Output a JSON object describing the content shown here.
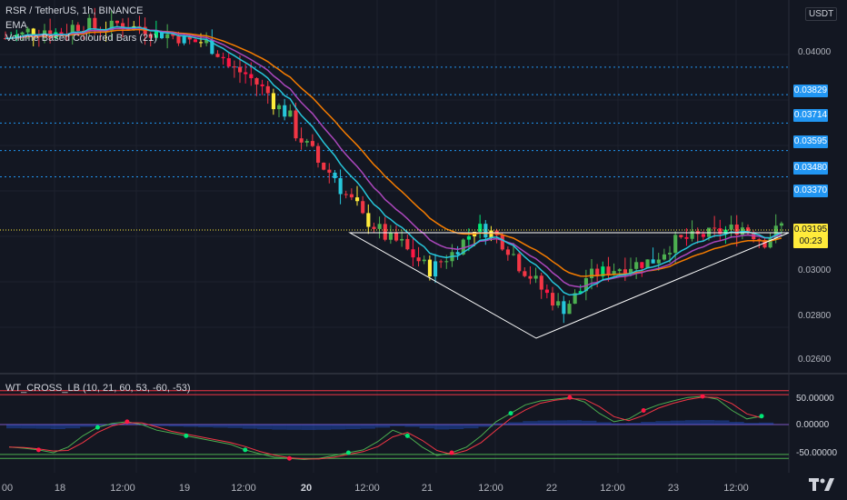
{
  "chart_data": {
    "type": "candlestick",
    "title": "RSR / TetherUS, 1h, BINANCE",
    "indicators": [
      "EMA",
      "Volume Based Coloured Bars (21)"
    ],
    "currency": "USDT",
    "y_axis_ticks": [
      "0.04000",
      "0.03000",
      "0.02800",
      "0.02600"
    ],
    "price_levels": [
      0.03829,
      0.03714,
      0.03595,
      0.0348,
      0.0337
    ],
    "last_price": "0.03195",
    "countdown": "00:23",
    "x_axis_ticks": [
      {
        "label": "00",
        "bold": false
      },
      {
        "label": "18",
        "bold": false
      },
      {
        "label": "12:00",
        "bold": false
      },
      {
        "label": "19",
        "bold": false
      },
      {
        "label": "12:00",
        "bold": false
      },
      {
        "label": "20",
        "bold": true
      },
      {
        "label": "12:00",
        "bold": false
      },
      {
        "label": "21",
        "bold": false
      },
      {
        "label": "12:00",
        "bold": false
      },
      {
        "label": "22",
        "bold": false
      },
      {
        "label": "12:00",
        "bold": false
      },
      {
        "label": "23",
        "bold": false
      },
      {
        "label": "12:00",
        "bold": false
      }
    ],
    "close_path": [
      [
        0.0395,
        0.0397
      ],
      [
        0.0398,
        0.0399
      ],
      [
        0.0397,
        0.0398
      ],
      [
        0.04,
        0.0401
      ],
      [
        0.0399,
        0.04
      ],
      [
        0.0401,
        0.0399
      ],
      [
        0.04,
        0.0396
      ],
      [
        0.0397,
        0.0395
      ],
      [
        0.0394,
        0.0393
      ],
      [
        0.0393,
        0.0385
      ],
      [
        0.0383,
        0.0379
      ],
      [
        0.0378,
        0.037
      ],
      [
        0.0368,
        0.036
      ],
      [
        0.0355,
        0.0345
      ],
      [
        0.0343,
        0.0335
      ],
      [
        0.0332,
        0.0322
      ],
      [
        0.032,
        0.0313
      ],
      [
        0.0312,
        0.0308
      ],
      [
        0.0306,
        0.0298
      ],
      [
        0.0298,
        0.0305
      ],
      [
        0.0305,
        0.0315
      ],
      [
        0.0316,
        0.0313
      ],
      [
        0.0312,
        0.0302
      ],
      [
        0.03,
        0.0291
      ],
      [
        0.029,
        0.0281
      ],
      [
        0.0282,
        0.0292
      ],
      [
        0.0295,
        0.0298
      ],
      [
        0.0298,
        0.03
      ],
      [
        0.03,
        0.0302
      ],
      [
        0.0302,
        0.031
      ],
      [
        0.031,
        0.0312
      ],
      [
        0.0312,
        0.0314
      ],
      [
        0.0314,
        0.0316
      ],
      [
        0.0316,
        0.031
      ],
      [
        0.031,
        0.0319
      ]
    ],
    "triangle_annotation": "descending-triangle",
    "oscillator": {
      "name": "WT_CROSS_LB (10, 21, 60, 53, -60, -53)",
      "ticks": [
        "50.00000",
        "0.00000",
        "-50.00000"
      ],
      "levels": [
        60,
        53,
        0,
        -53,
        -60
      ],
      "wt1": [
        -40,
        -42,
        -45,
        -50,
        -40,
        -20,
        -5,
        2,
        5,
        0,
        -10,
        -15,
        -20,
        -25,
        -30,
        -35,
        -45,
        -52,
        -58,
        -60,
        -62,
        -60,
        -55,
        -50,
        -45,
        -30,
        -10,
        -20,
        -40,
        -55,
        -50,
        -40,
        -20,
        5,
        20,
        35,
        42,
        45,
        48,
        40,
        20,
        5,
        10,
        25,
        35,
        42,
        48,
        50,
        45,
        25,
        10,
        15
      ],
      "cross_points": [
        {
          "i": 2,
          "up": false
        },
        {
          "i": 6,
          "up": true
        },
        {
          "i": 8,
          "up": false
        },
        {
          "i": 12,
          "up": true
        },
        {
          "i": 16,
          "up": true
        },
        {
          "i": 19,
          "up": false
        },
        {
          "i": 23,
          "up": true
        },
        {
          "i": 27,
          "up": true
        },
        {
          "i": 30,
          "up": false
        },
        {
          "i": 34,
          "up": true
        },
        {
          "i": 38,
          "up": false
        },
        {
          "i": 43,
          "up": false
        },
        {
          "i": 47,
          "up": false
        },
        {
          "i": 51,
          "up": true
        }
      ]
    }
  },
  "colors": {
    "background": "#131722",
    "grid": "#1e222d",
    "level_line": "#2196f3",
    "price_line": "#ffeb3b",
    "triangle": "#ffffff",
    "ema_fast": "#26c6da",
    "ema_mid": "#ab47bc",
    "ema_slow": "#f57c00",
    "candle_up": "#4caf50",
    "candle_down": "#f23645",
    "candle_hi_vol_up": "#00e676",
    "candle_hi_vol_down": "#ff1744",
    "candle_neutral_bar": "#ffeb3b",
    "osc_upper": "#f23645",
    "osc_lower": "#4caf50",
    "osc_mid": "#7e57c2"
  },
  "icons": {
    "logo": "tradingview-logo-icon"
  }
}
